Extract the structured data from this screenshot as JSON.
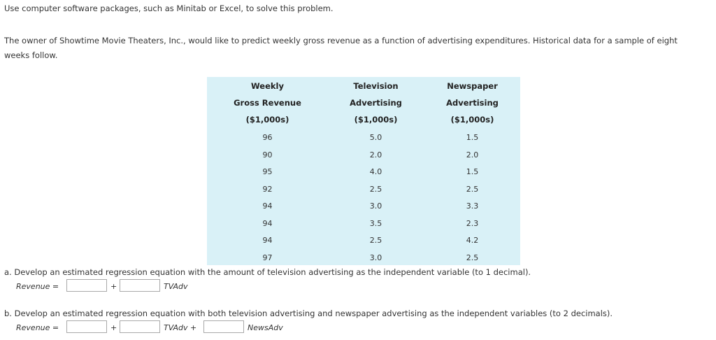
{
  "instruction": "Use computer software packages, such as Minitab or Excel, to solve this problem.",
  "intro_line1": "The owner of Showtime Movie Theaters, Inc., would like to predict weekly gross revenue as a function of advertising expenditures. Historical data for a sample of eight",
  "intro_line2": "weeks follow.",
  "table": {
    "headers": [
      [
        "Weekly",
        "Gross Revenue",
        "($1,000s)"
      ],
      [
        "Television",
        "Advertising",
        "($1,000s)"
      ],
      [
        "Newspaper",
        "Advertising",
        "($1,000s)"
      ]
    ],
    "rows": [
      [
        "96",
        "5.0",
        "1.5"
      ],
      [
        "90",
        "2.0",
        "2.0"
      ],
      [
        "95",
        "4.0",
        "1.5"
      ],
      [
        "92",
        "2.5",
        "2.5"
      ],
      [
        "94",
        "3.0",
        "3.3"
      ],
      [
        "94",
        "3.5",
        "2.3"
      ],
      [
        "94",
        "2.5",
        "4.2"
      ],
      [
        "97",
        "3.0",
        "2.5"
      ]
    ]
  },
  "question_a": "a. Develop an estimated regression equation with the amount of television advertising as the independent variable (to 1 decimal).",
  "question_b": "b. Develop an estimated regression equation with both television advertising and newspaper advertising as the independent variables (to 2 decimals).",
  "equation": {
    "revenue_label": "Revenue =",
    "plus": "+",
    "tvadv_label": "TVAdv",
    "tvadv_plus_label": "TVAdv +",
    "newsadv_label": "NewsAdv"
  },
  "answers": {
    "a_intercept": "",
    "a_tv_coef": "",
    "b_intercept": "",
    "b_tv_coef": "",
    "b_news_coef": ""
  }
}
